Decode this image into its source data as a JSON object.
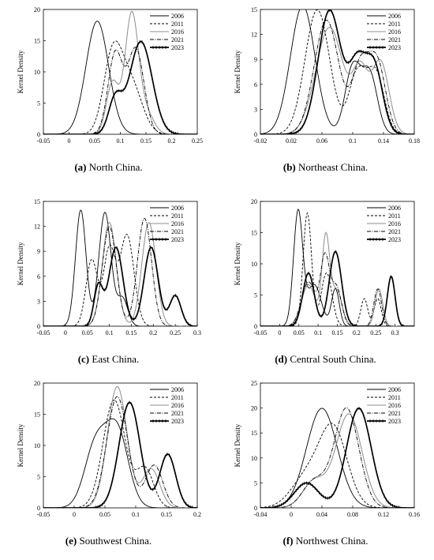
{
  "figure": {
    "ylabel": "Kernel Density",
    "years": [
      "2006",
      "2011",
      "2016",
      "2021",
      "2023"
    ],
    "series_styles": {
      "2006": {
        "color": "#000000",
        "dash": "",
        "width": 0.9,
        "markers": false
      },
      "2011": {
        "color": "#000000",
        "dash": "3,2",
        "width": 0.9,
        "markers": false
      },
      "2016": {
        "color": "#8c8c8c",
        "dash": "",
        "width": 1.0,
        "markers": false
      },
      "2021": {
        "color": "#000000",
        "dash": "5,1.5,1,1.5",
        "width": 0.9,
        "markers": false
      },
      "2023": {
        "color": "#000000",
        "dash": "",
        "width": 1.7,
        "markers": true
      }
    }
  },
  "chart_data": [
    {
      "type": "line",
      "id": "a",
      "caption_letter": "(a)",
      "caption_text": " North China.",
      "xlim": [
        -0.05,
        0.25
      ],
      "ylim": [
        0,
        20
      ],
      "xticks": [
        "-0.05",
        "0",
        "0.05",
        "0.1",
        "0.15",
        "0.2",
        "0.25"
      ],
      "xtick_values": [
        -0.05,
        0,
        0.05,
        0.1,
        0.15,
        0.2,
        0.25
      ],
      "yticks": [
        "0",
        "5",
        "10",
        "15",
        "20"
      ],
      "ytick_values": [
        0,
        5,
        10,
        15,
        20
      ],
      "series": [
        {
          "name": "2006",
          "components": [
            [
              0.055,
              0.022,
              1.0
            ]
          ]
        },
        {
          "name": "2011",
          "components": [
            [
              0.085,
              0.018,
              0.55
            ],
            [
              0.12,
              0.022,
              0.45
            ]
          ]
        },
        {
          "name": "2016",
          "components": [
            [
              0.085,
              0.012,
              0.25
            ],
            [
              0.122,
              0.013,
              0.62
            ],
            [
              0.15,
              0.015,
              0.13
            ]
          ]
        },
        {
          "name": "2021",
          "components": [
            [
              0.09,
              0.014,
              0.45
            ],
            [
              0.13,
              0.016,
              0.55
            ]
          ]
        },
        {
          "name": "2023",
          "components": [
            [
              0.09,
              0.013,
              0.18
            ],
            [
              0.14,
              0.022,
              0.82
            ]
          ]
        }
      ]
    },
    {
      "type": "line",
      "id": "b",
      "caption_letter": "(b)",
      "caption_text": " Northeast China.",
      "xlim": [
        -0.02,
        0.18
      ],
      "ylim": [
        0,
        15
      ],
      "xticks": [
        "-0.02",
        "0.02",
        "0.06",
        "0.1",
        "0.14",
        "0.18"
      ],
      "xtick_values": [
        -0.02,
        0.02,
        0.06,
        0.1,
        0.14,
        0.18
      ],
      "yticks": [
        "0",
        "3",
        "6",
        "9",
        "12",
        "15"
      ],
      "ytick_values": [
        0,
        3,
        6,
        9,
        12,
        15
      ],
      "series": [
        {
          "name": "2006",
          "components": [
            [
              0.035,
              0.016,
              0.62
            ],
            [
              0.1,
              0.01,
              0.2
            ],
            [
              0.122,
              0.01,
              0.18
            ]
          ]
        },
        {
          "name": "2011",
          "components": [
            [
              0.054,
              0.016,
              0.6
            ],
            [
              0.106,
              0.011,
              0.2
            ],
            [
              0.13,
              0.011,
              0.2
            ]
          ]
        },
        {
          "name": "2016",
          "components": [
            [
              0.07,
              0.018,
              0.58
            ],
            [
              0.11,
              0.01,
              0.18
            ],
            [
              0.136,
              0.011,
              0.24
            ]
          ]
        },
        {
          "name": "2021",
          "components": [
            [
              0.066,
              0.016,
              0.55
            ],
            [
              0.11,
              0.011,
              0.22
            ],
            [
              0.132,
              0.011,
              0.23
            ]
          ]
        },
        {
          "name": "2023",
          "components": [
            [
              0.07,
              0.015,
              0.56
            ],
            [
              0.106,
              0.011,
              0.22
            ],
            [
              0.128,
              0.011,
              0.22
            ]
          ]
        }
      ]
    },
    {
      "type": "line",
      "id": "c",
      "caption_letter": "(c)",
      "caption_text": " East China.",
      "xlim": [
        -0.05,
        0.3
      ],
      "ylim": [
        0,
        15
      ],
      "xticks": [
        "-0.05",
        "0",
        "0.05",
        "0.1",
        "0.15",
        "0.2",
        "0.25",
        "0.3"
      ],
      "xtick_values": [
        -0.05,
        0,
        0.05,
        0.1,
        0.15,
        0.2,
        0.25,
        0.3
      ],
      "yticks": [
        "0",
        "3",
        "6",
        "9",
        "12",
        "15"
      ],
      "ytick_values": [
        0,
        3,
        6,
        9,
        12,
        15
      ],
      "series": [
        {
          "name": "2006",
          "components": [
            [
              0.035,
              0.012,
              0.42
            ],
            [
              0.09,
              0.014,
              0.48
            ],
            [
              0.13,
              0.012,
              0.1
            ]
          ]
        },
        {
          "name": "2011",
          "components": [
            [
              0.06,
              0.013,
              0.26
            ],
            [
              0.1,
              0.013,
              0.3
            ],
            [
              0.14,
              0.016,
              0.44
            ]
          ]
        },
        {
          "name": "2016",
          "components": [
            [
              0.1,
              0.016,
              0.5
            ],
            [
              0.19,
              0.016,
              0.5
            ]
          ]
        },
        {
          "name": "2021",
          "components": [
            [
              0.1,
              0.016,
              0.48
            ],
            [
              0.18,
              0.016,
              0.52
            ]
          ]
        },
        {
          "name": "2023",
          "components": [
            [
              0.075,
              0.01,
              0.12
            ],
            [
              0.115,
              0.016,
              0.38
            ],
            [
              0.195,
              0.016,
              0.38
            ],
            [
              0.25,
              0.013,
              0.12
            ]
          ]
        }
      ]
    },
    {
      "type": "line",
      "id": "d",
      "caption_letter": "(d)",
      "caption_text": " Central South China.",
      "xlim": [
        -0.05,
        0.35
      ],
      "ylim": [
        0,
        20
      ],
      "xticks": [
        "-0.05",
        "0",
        "0.05",
        "0.1",
        "0.15",
        "0.2",
        "0.25",
        "0.3"
      ],
      "xtick_values": [
        -0.05,
        0,
        0.05,
        0.1,
        0.15,
        0.2,
        0.25,
        0.3
      ],
      "yticks": [
        "0",
        "5",
        "10",
        "15",
        "20"
      ],
      "ytick_values": [
        0,
        5,
        10,
        15,
        20
      ],
      "series": [
        {
          "name": "2006",
          "components": [
            [
              0.048,
              0.012,
              0.55
            ],
            [
              0.09,
              0.018,
              0.3
            ],
            [
              0.145,
              0.01,
              0.15
            ]
          ]
        },
        {
          "name": "2011",
          "components": [
            [
              0.072,
              0.011,
              0.5
            ],
            [
              0.122,
              0.014,
              0.3
            ],
            [
              0.22,
              0.009,
              0.1
            ],
            [
              0.255,
              0.009,
              0.1
            ]
          ]
        },
        {
          "name": "2016",
          "components": [
            [
              0.075,
              0.018,
              0.3
            ],
            [
              0.12,
              0.01,
              0.35
            ],
            [
              0.148,
              0.014,
              0.2
            ],
            [
              0.258,
              0.01,
              0.15
            ]
          ]
        },
        {
          "name": "2021",
          "components": [
            [
              0.075,
              0.018,
              0.32
            ],
            [
              0.118,
              0.012,
              0.33
            ],
            [
              0.148,
              0.013,
              0.2
            ],
            [
              0.255,
              0.01,
              0.15
            ]
          ]
        },
        {
          "name": "2023",
          "components": [
            [
              0.075,
              0.015,
              0.32
            ],
            [
              0.145,
              0.016,
              0.48
            ],
            [
              0.29,
              0.01,
              0.2
            ]
          ]
        }
      ]
    },
    {
      "type": "line",
      "id": "e",
      "caption_letter": "(e)",
      "caption_text": " Southwest China.",
      "xlim": [
        -0.05,
        0.2
      ],
      "ylim": [
        0,
        20
      ],
      "xticks": [
        "-0.05",
        "0",
        "0.05",
        "0.1",
        "0.15",
        "0.2"
      ],
      "xtick_values": [
        -0.05,
        0,
        0.05,
        0.1,
        0.15,
        0.2
      ],
      "yticks": [
        "0",
        "5",
        "10",
        "15",
        "20"
      ],
      "ytick_values": [
        0,
        5,
        10,
        15,
        20
      ],
      "series": [
        {
          "name": "2006",
          "components": [
            [
              0.035,
              0.018,
              0.45
            ],
            [
              0.07,
              0.018,
              0.55
            ]
          ]
        },
        {
          "name": "2011",
          "components": [
            [
              0.065,
              0.018,
              0.78
            ],
            [
              0.115,
              0.014,
              0.22
            ]
          ]
        },
        {
          "name": "2016",
          "components": [
            [
              0.07,
              0.016,
              0.78
            ],
            [
              0.125,
              0.014,
              0.22
            ]
          ]
        },
        {
          "name": "2021",
          "components": [
            [
              0.07,
              0.017,
              0.76
            ],
            [
              0.13,
              0.014,
              0.24
            ]
          ]
        },
        {
          "name": "2023",
          "components": [
            [
              0.09,
              0.017,
              0.72
            ],
            [
              0.152,
              0.013,
              0.28
            ]
          ]
        }
      ]
    },
    {
      "type": "line",
      "id": "f",
      "caption_letter": "(f)",
      "caption_text": " Northwest China.",
      "xlim": [
        -0.04,
        0.16
      ],
      "ylim": [
        0,
        25
      ],
      "xticks": [
        "-0.04",
        "0",
        "0.04",
        "0.08",
        "0.12",
        "0.16"
      ],
      "xtick_values": [
        -0.04,
        0,
        0.04,
        0.08,
        0.12,
        0.16
      ],
      "yticks": [
        "0",
        "5",
        "10",
        "15",
        "20",
        "25"
      ],
      "ytick_values": [
        0,
        5,
        10,
        15,
        20,
        25
      ],
      "series": [
        {
          "name": "2006",
          "components": [
            [
              0.04,
              0.02,
              1.0
            ]
          ]
        },
        {
          "name": "2011",
          "components": [
            [
              0.02,
              0.02,
              0.3
            ],
            [
              0.055,
              0.018,
              0.7
            ]
          ]
        },
        {
          "name": "2016",
          "components": [
            [
              0.03,
              0.015,
              0.2
            ],
            [
              0.075,
              0.017,
              0.8
            ]
          ]
        },
        {
          "name": "2021",
          "components": [
            [
              0.03,
              0.015,
              0.2
            ],
            [
              0.072,
              0.016,
              0.8
            ]
          ]
        },
        {
          "name": "2023",
          "components": [
            [
              0.02,
              0.016,
              0.2
            ],
            [
              0.088,
              0.016,
              0.8
            ]
          ]
        }
      ]
    }
  ]
}
